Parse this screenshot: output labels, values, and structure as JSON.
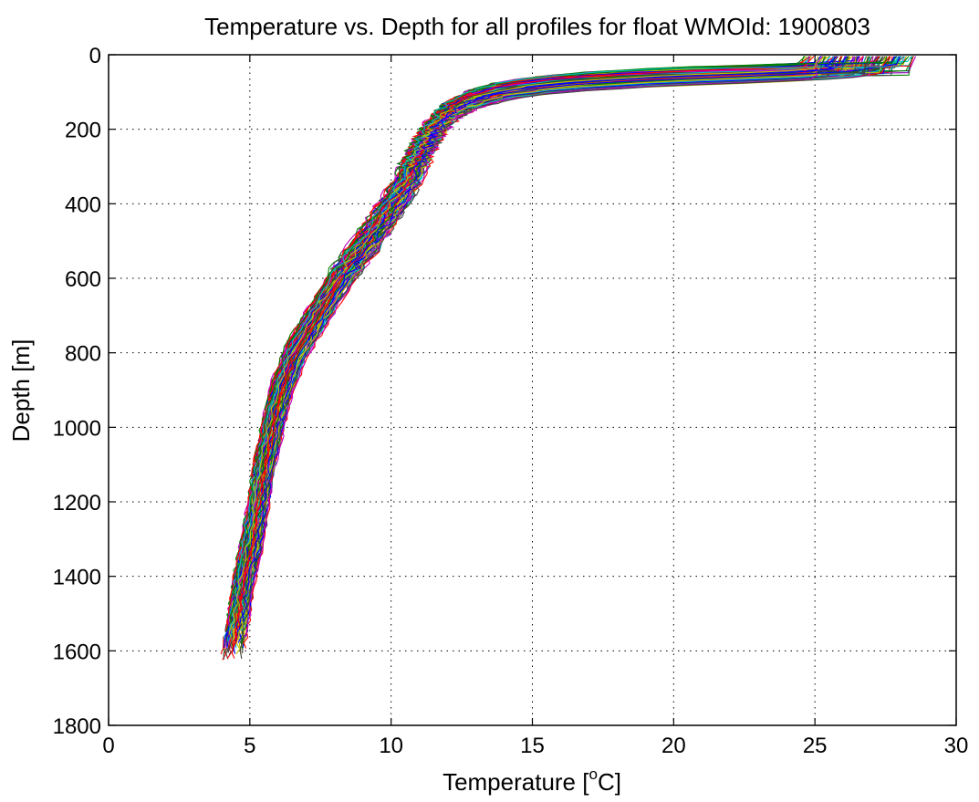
{
  "chart_data": {
    "type": "line",
    "title": "Temperature vs. Depth for all profiles for float WMOId: 1900803",
    "xlabel_prefix": "Temperature [",
    "xlabel_sup": "o",
    "xlabel_suffix": "C]",
    "ylabel": "Depth [m]",
    "xlim": [
      0,
      30
    ],
    "ylim": [
      0,
      1800
    ],
    "y_reversed": true,
    "grid": true,
    "grid_style": "dotted",
    "x_ticks": [
      0,
      5,
      10,
      15,
      20,
      25,
      30
    ],
    "x_tick_labels": [
      "0",
      "5",
      "10",
      "15",
      "20",
      "25",
      "30"
    ],
    "y_ticks": [
      0,
      200,
      400,
      600,
      800,
      1000,
      1200,
      1400,
      1600,
      1800
    ],
    "y_tick_labels": [
      "0",
      "200",
      "400",
      "600",
      "800",
      "1000",
      "1200",
      "1400",
      "1600",
      "1800"
    ],
    "series_colors": [
      "#0000ff",
      "#008000",
      "#ff0000",
      "#00bfbf",
      "#bf00bf",
      "#bfbf00",
      "#404040"
    ],
    "representative_profile": {
      "depth": [
        5,
        20,
        30,
        40,
        50,
        60,
        70,
        80,
        90,
        100,
        120,
        150,
        200,
        250,
        300,
        350,
        400,
        500,
        600,
        700,
        800,
        900,
        1000,
        1100,
        1200,
        1300,
        1400,
        1500,
        1600,
        1630
      ],
      "temperature": [
        27.5,
        27.4,
        27.1,
        25.8,
        23.0,
        19.5,
        17.2,
        15.6,
        14.6,
        13.8,
        12.9,
        12.1,
        11.5,
        11.1,
        10.8,
        10.5,
        10.1,
        9.2,
        8.2,
        7.4,
        6.6,
        6.1,
        5.8,
        5.5,
        5.3,
        5.1,
        4.8,
        4.6,
        4.4,
        4.3
      ]
    },
    "profile_count": 120
  }
}
